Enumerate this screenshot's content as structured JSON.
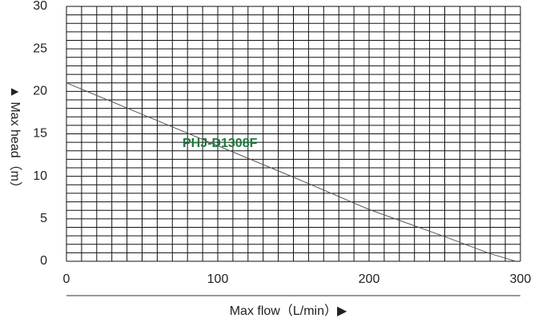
{
  "chart_data": {
    "type": "line",
    "xlabel": "Max flow（L/min）▶",
    "ylabel": "▲ Max head（m）",
    "annotation": "PHJ-D1308F",
    "x": [
      0,
      50,
      100,
      150,
      200,
      250,
      280,
      297
    ],
    "series": [
      {
        "name": "PHJ-D1308F",
        "color": "#555555",
        "values": [
          21,
          17.3,
          13.6,
          9.9,
          6.1,
          2.9,
          0.9,
          0
        ]
      }
    ],
    "xlim": [
      0,
      300
    ],
    "ylim": [
      0,
      30
    ],
    "xticks": [
      0,
      100,
      200,
      300
    ],
    "yticks": [
      0,
      5,
      10,
      15,
      20,
      25,
      30
    ],
    "x_minor_ticks": [
      10,
      20,
      30,
      40,
      50,
      60,
      70,
      80,
      90,
      110,
      120,
      130,
      140,
      150,
      160,
      170,
      180,
      190,
      210,
      220,
      230,
      240,
      250,
      260,
      270,
      280,
      290
    ],
    "y_minor_ticks": [
      1,
      2,
      3,
      4,
      6,
      7,
      8,
      9,
      11,
      12,
      13,
      14,
      16,
      17,
      18,
      19,
      21,
      22,
      23,
      24,
      26,
      27,
      28,
      29
    ],
    "grid": true,
    "annotation_color": "#1e7a3c"
  }
}
